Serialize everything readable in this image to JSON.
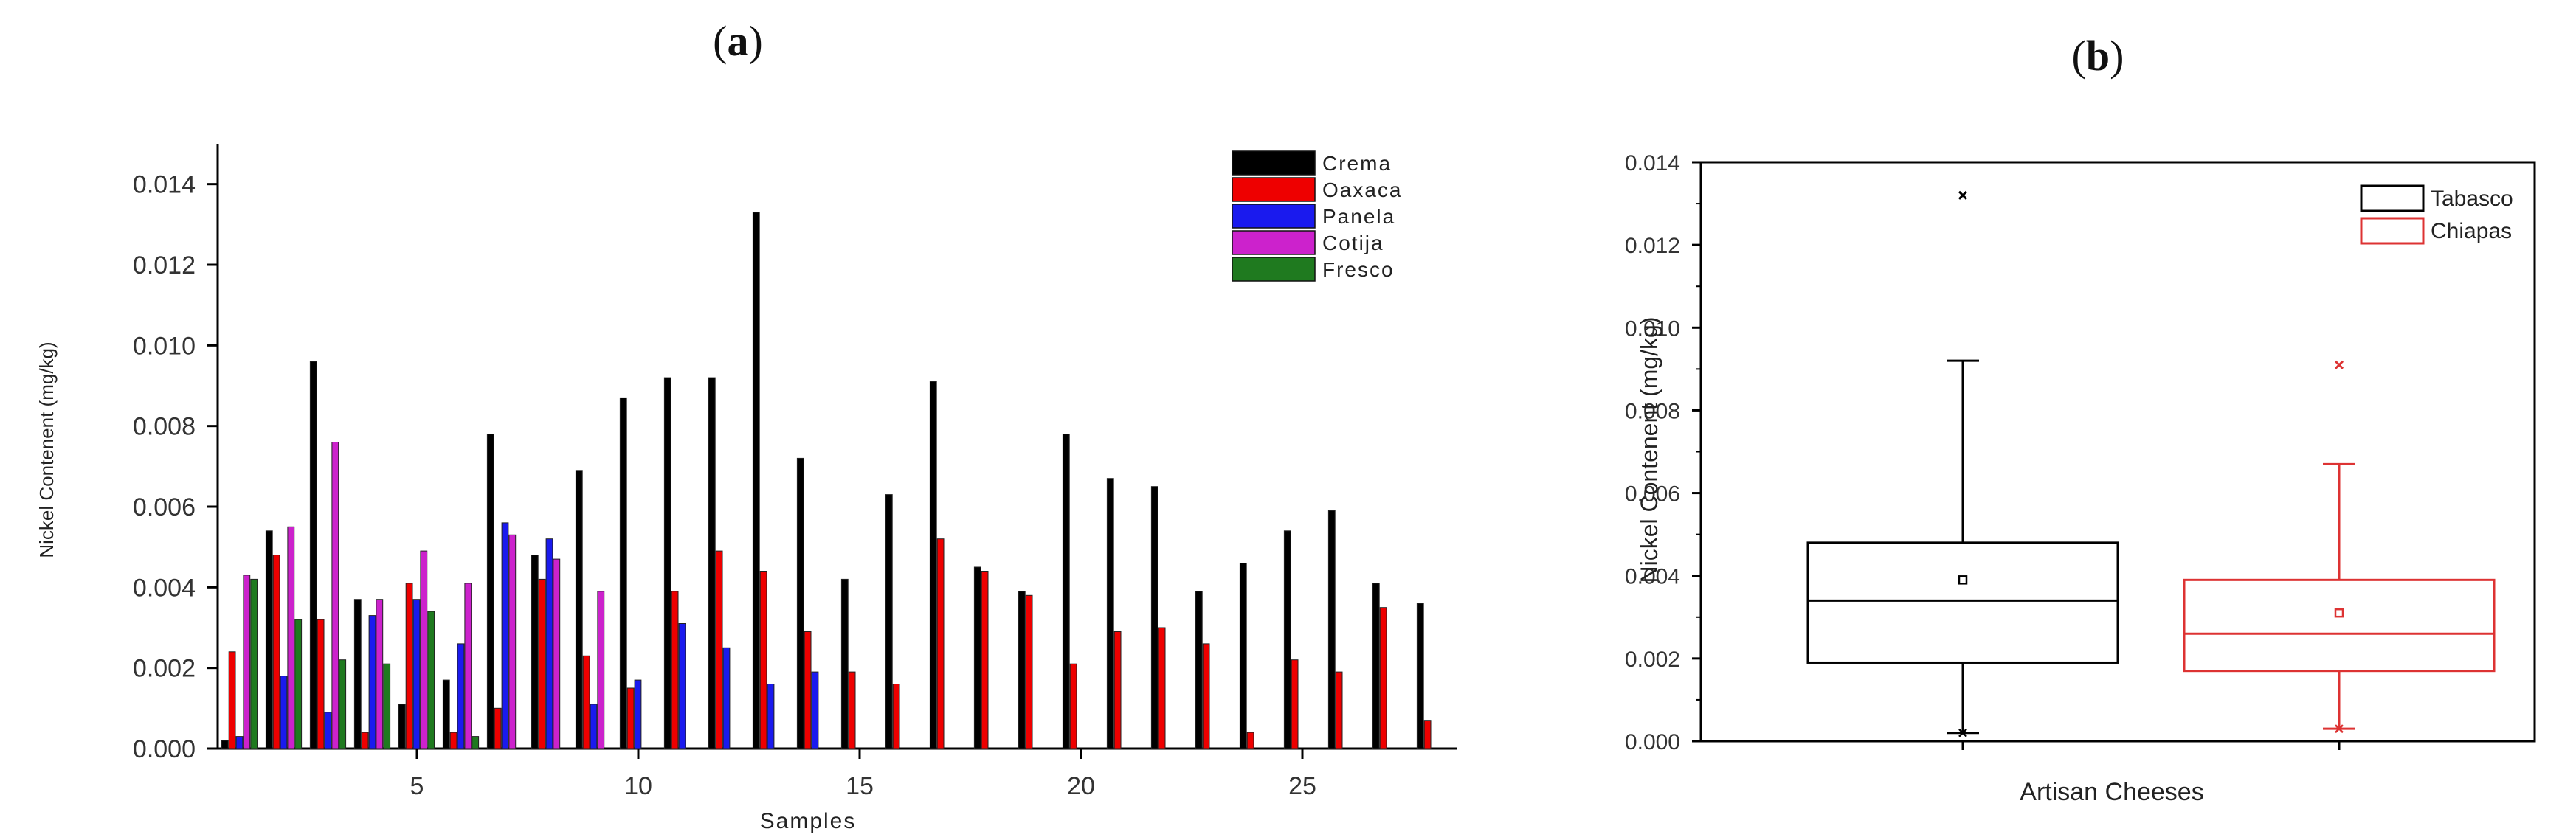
{
  "chart_data": [
    {
      "type": "bar",
      "panel_label": "a",
      "xlabel": "Samples",
      "ylabel": "Nickel Contenent (mg/kg)",
      "ylim": [
        0,
        0.015
      ],
      "xlim": [
        0.5,
        28.5
      ],
      "yticks": [
        0.0,
        0.002,
        0.004,
        0.006,
        0.008,
        0.01,
        0.012,
        0.014
      ],
      "ytick_labels": [
        "0.000",
        "0.002",
        "0.004",
        "0.006",
        "0.008",
        "0.010",
        "0.012",
        "0.014"
      ],
      "xticks": [
        5,
        10,
        15,
        20,
        25
      ],
      "xtick_labels": [
        "5",
        "10",
        "15",
        "20",
        "25"
      ],
      "legend_position": "top-right",
      "categories": [
        1,
        2,
        3,
        4,
        5,
        6,
        7,
        8,
        9,
        10,
        11,
        12,
        13,
        14,
        15,
        16,
        17,
        18,
        19,
        20,
        21,
        22,
        23,
        24,
        25,
        26,
        27,
        28
      ],
      "series": [
        {
          "name": "Crema",
          "color": "#000000",
          "values": [
            0.0002,
            0.0054,
            0.0096,
            0.0037,
            0.0011,
            0.0017,
            0.0078,
            0.0048,
            0.0069,
            0.0087,
            0.0092,
            0.0092,
            0.0133,
            0.0072,
            0.0042,
            0.0063,
            0.0091,
            0.0045,
            0.0039,
            0.0078,
            0.0067,
            0.0065,
            0.0039,
            0.0046,
            0.0054,
            0.0059,
            0.0041,
            0.0036
          ]
        },
        {
          "name": "Oaxaca",
          "color": "#ee0000",
          "values": [
            0.0024,
            0.0048,
            0.0032,
            0.0004,
            0.0041,
            0.0004,
            0.001,
            0.0042,
            0.0023,
            0.0015,
            0.0039,
            0.0049,
            0.0044,
            0.0029,
            0.0019,
            0.0016,
            0.0052,
            0.0044,
            0.0038,
            0.0021,
            0.0029,
            0.003,
            0.0026,
            0.0004,
            0.0022,
            0.0019,
            0.0035,
            0.0007
          ]
        },
        {
          "name": "Panela",
          "color": "#1a1aee",
          "values": [
            0.0003,
            0.0018,
            0.0009,
            0.0033,
            0.0037,
            0.0026,
            0.0056,
            0.0052,
            0.0011,
            0.0017,
            0.0031,
            0.0025,
            0.0016,
            0.0019,
            0,
            0,
            0,
            0,
            0,
            0,
            0,
            0,
            0,
            0,
            0,
            0,
            0,
            0
          ]
        },
        {
          "name": "Cotija",
          "color": "#cc22cc",
          "values": [
            0.0043,
            0.0055,
            0.0076,
            0.0037,
            0.0049,
            0.0041,
            0.0053,
            0.0047,
            0.0039,
            0,
            0,
            0,
            0,
            0,
            0,
            0,
            0,
            0,
            0,
            0,
            0,
            0,
            0,
            0,
            0,
            0,
            0,
            0
          ]
        },
        {
          "name": "Fresco",
          "color": "#1f7a1f",
          "values": [
            0.0042,
            0.0032,
            0.0022,
            0.0021,
            0.0034,
            0.0003,
            0,
            0,
            0,
            0,
            0,
            0,
            0,
            0,
            0,
            0,
            0,
            0,
            0,
            0,
            0,
            0,
            0,
            0,
            0,
            0,
            0,
            0
          ]
        }
      ]
    },
    {
      "type": "box",
      "panel_label": "b",
      "xlabel": "Artisan Cheeses",
      "ylabel": "Nickel Contenent (mg/kg)",
      "ylim": [
        0,
        0.014
      ],
      "yticks": [
        0.0,
        0.002,
        0.004,
        0.006,
        0.008,
        0.01,
        0.012,
        0.014
      ],
      "ytick_labels": [
        "0.000",
        "0.002",
        "0.004",
        "0.006",
        "0.008",
        "0.010",
        "0.012",
        "0.014"
      ],
      "legend_position": "top-right",
      "series": [
        {
          "name": "Tabasco",
          "color": "#000000",
          "whisker_low": 0.0002,
          "q1": 0.0019,
          "median": 0.0034,
          "mean": 0.0039,
          "q3": 0.0048,
          "whisker_high": 0.0092,
          "outliers": [
            0.0132
          ]
        },
        {
          "name": "Chiapas",
          "color": "#dd3333",
          "whisker_low": 0.0003,
          "q1": 0.0017,
          "median": 0.0026,
          "mean": 0.0031,
          "q3": 0.0039,
          "whisker_high": 0.0067,
          "outliers": [
            0.0091
          ]
        }
      ]
    }
  ]
}
